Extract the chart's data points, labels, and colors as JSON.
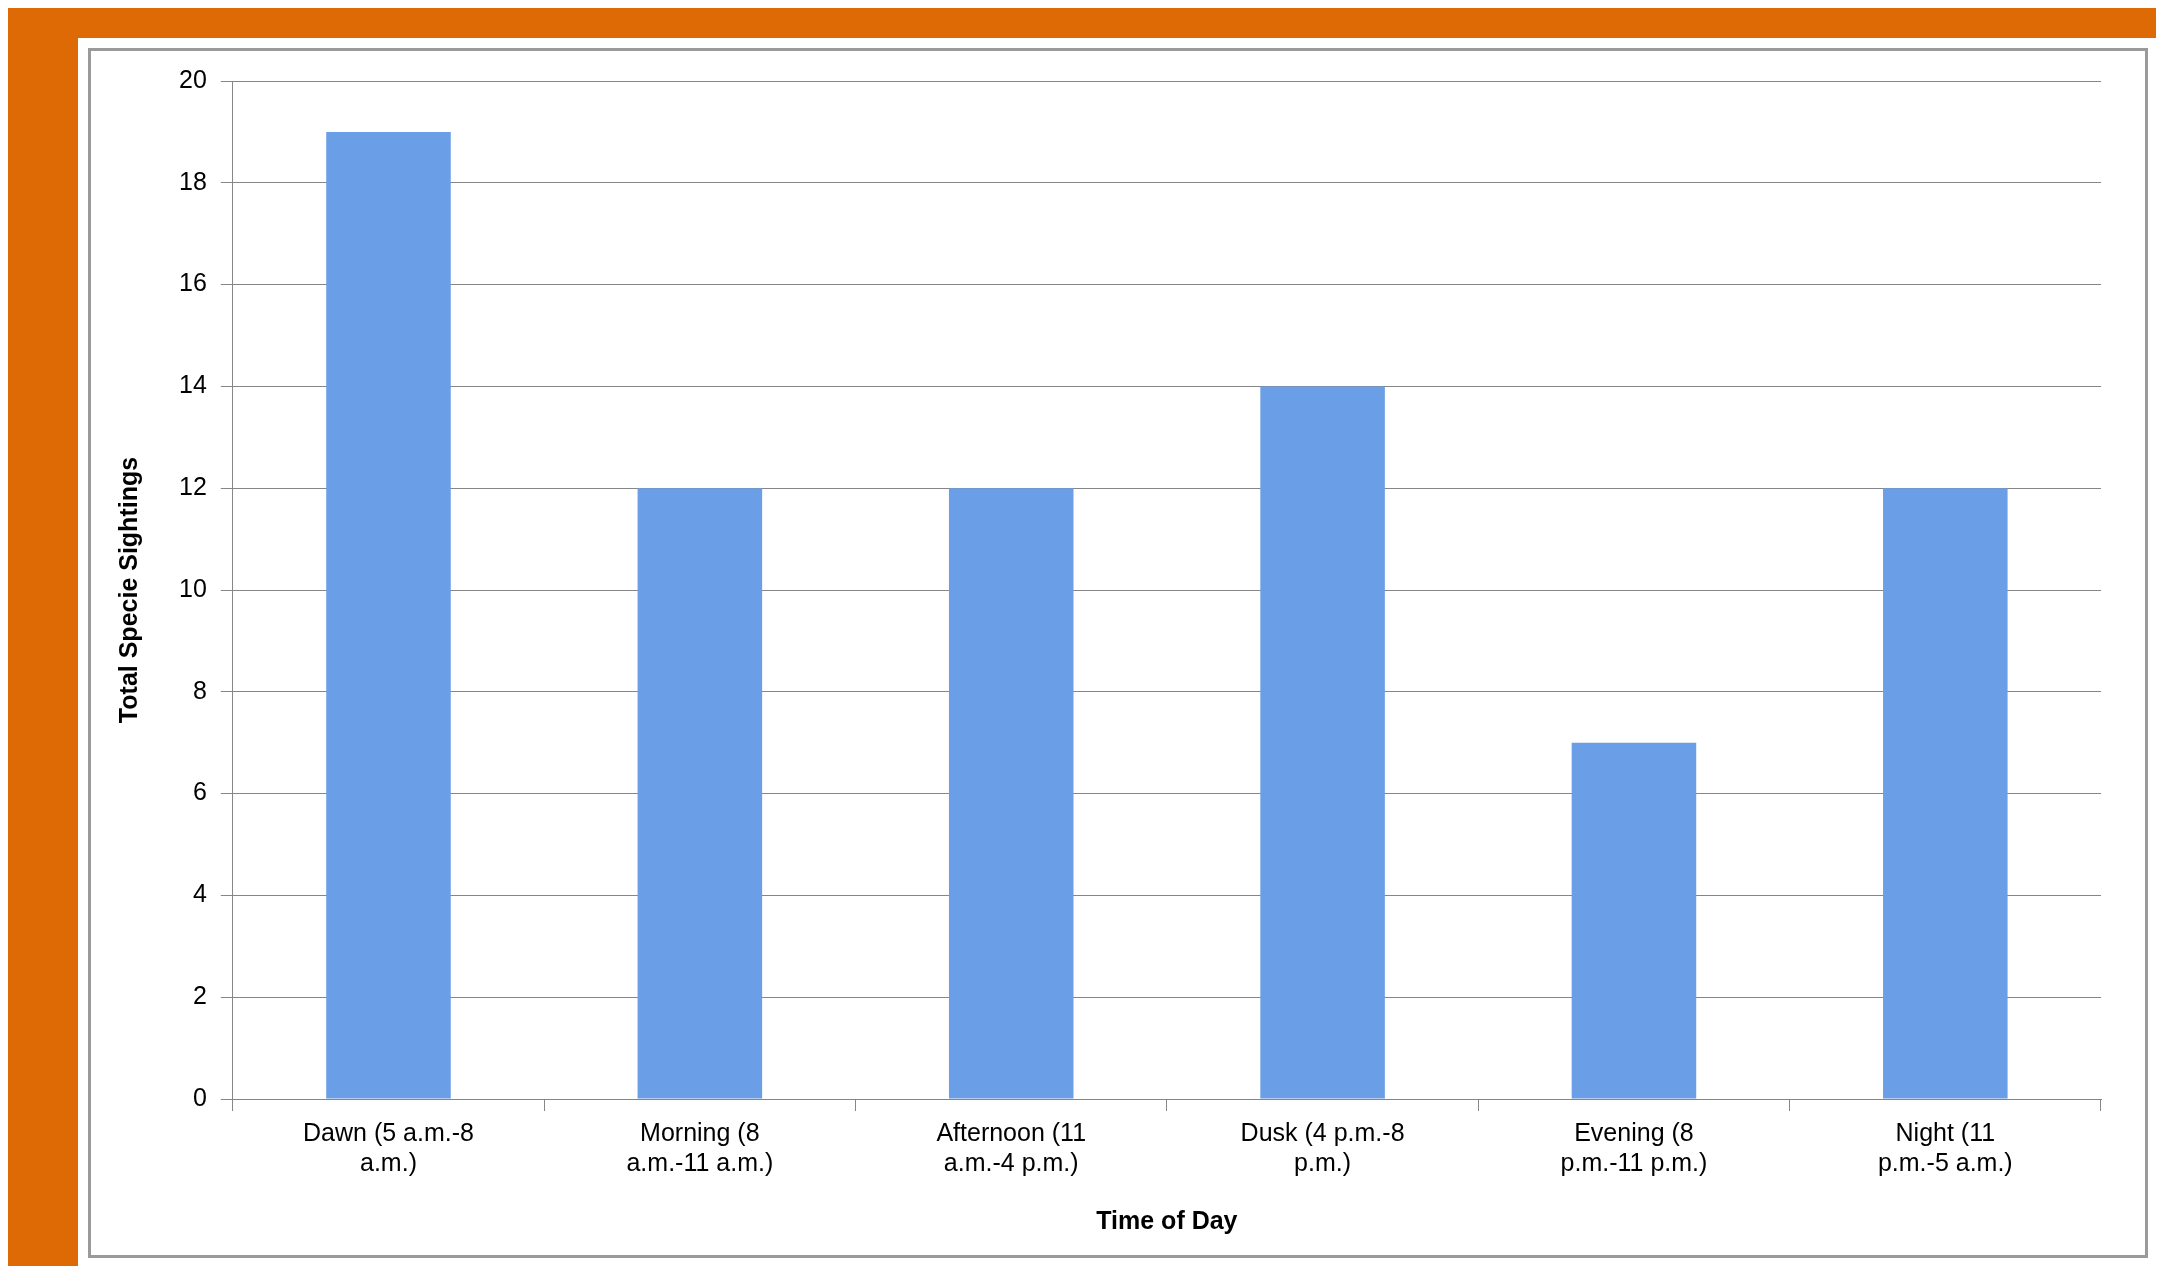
{
  "chart_data": {
    "type": "bar",
    "xlabel": "Time of Day",
    "ylabel": "Total Specie Sightings",
    "categories": [
      "Dawn (5 a.m.-8 a.m.)",
      "Morning (8 a.m.-11 a.m.)",
      "Afternoon (11 a.m.-4 p.m.)",
      "Dusk (4 p.m.-8 p.m.)",
      "Evening (8 p.m.-11 p.m.)",
      "Night (11 p.m.-5 a.m.)"
    ],
    "values": [
      19,
      12,
      12,
      14,
      7,
      12
    ],
    "color": "#6a9ee6",
    "ylim": [
      0,
      20
    ],
    "yticks": [
      0,
      2,
      4,
      6,
      8,
      10,
      12,
      14,
      16,
      18,
      20
    ],
    "grid": "y"
  }
}
